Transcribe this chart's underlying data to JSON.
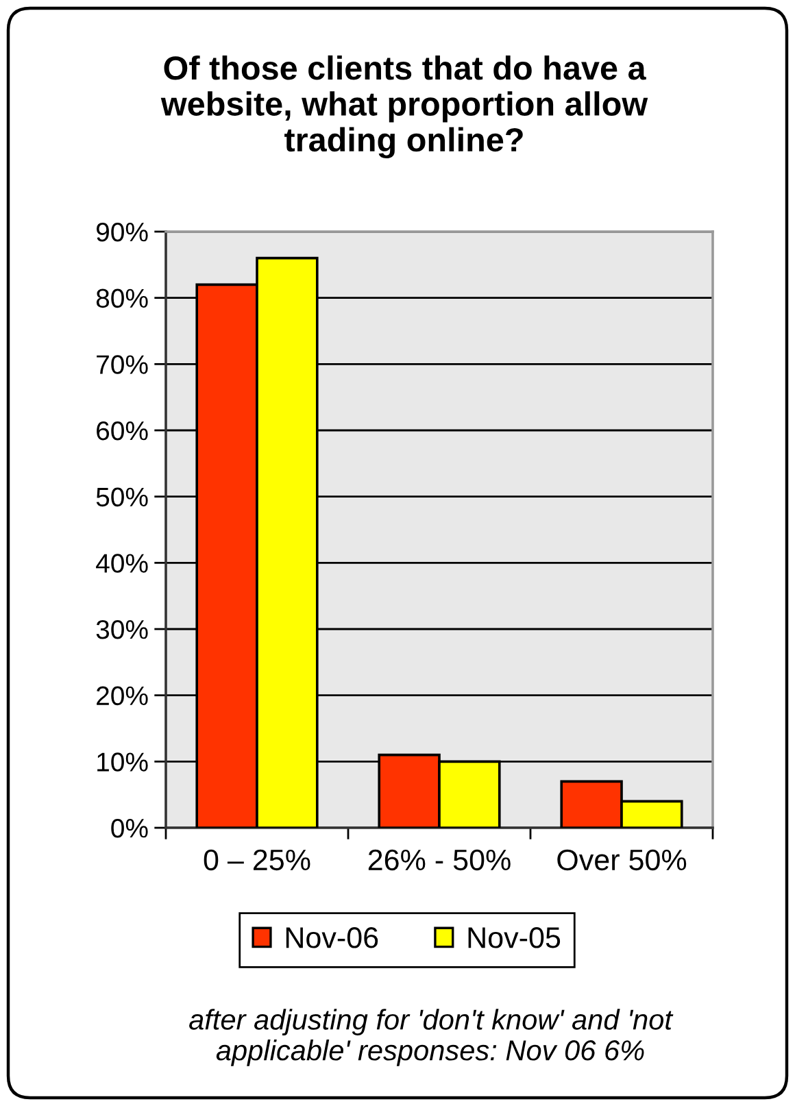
{
  "chart_data": {
    "type": "bar",
    "title": "Of those clients that do have a website, what proportion allow trading online?",
    "categories": [
      "0 – 25%",
      "26% - 50%",
      "Over 50%"
    ],
    "series": [
      {
        "name": "Nov-06",
        "color": "#ff3300",
        "values": [
          82,
          11,
          7
        ]
      },
      {
        "name": "Nov-05",
        "color": "#ffff00",
        "values": [
          86,
          10,
          4
        ]
      }
    ],
    "ylim": [
      0,
      90
    ],
    "yticks": [
      {
        "value": 0,
        "label": "0%"
      },
      {
        "value": 10,
        "label": "10%"
      },
      {
        "value": 20,
        "label": "20%"
      },
      {
        "value": 30,
        "label": "30%"
      },
      {
        "value": 40,
        "label": "40%"
      },
      {
        "value": 50,
        "label": "50%"
      },
      {
        "value": 60,
        "label": "60%"
      },
      {
        "value": 70,
        "label": "70%"
      },
      {
        "value": 80,
        "label": "80%"
      },
      {
        "value": 90,
        "label": "90%"
      }
    ],
    "grid": "y",
    "legend": "bottom",
    "annotations": [
      "after adjusting for 'don't know' and 'not applicable' responses: Nov 06 6%"
    ]
  }
}
